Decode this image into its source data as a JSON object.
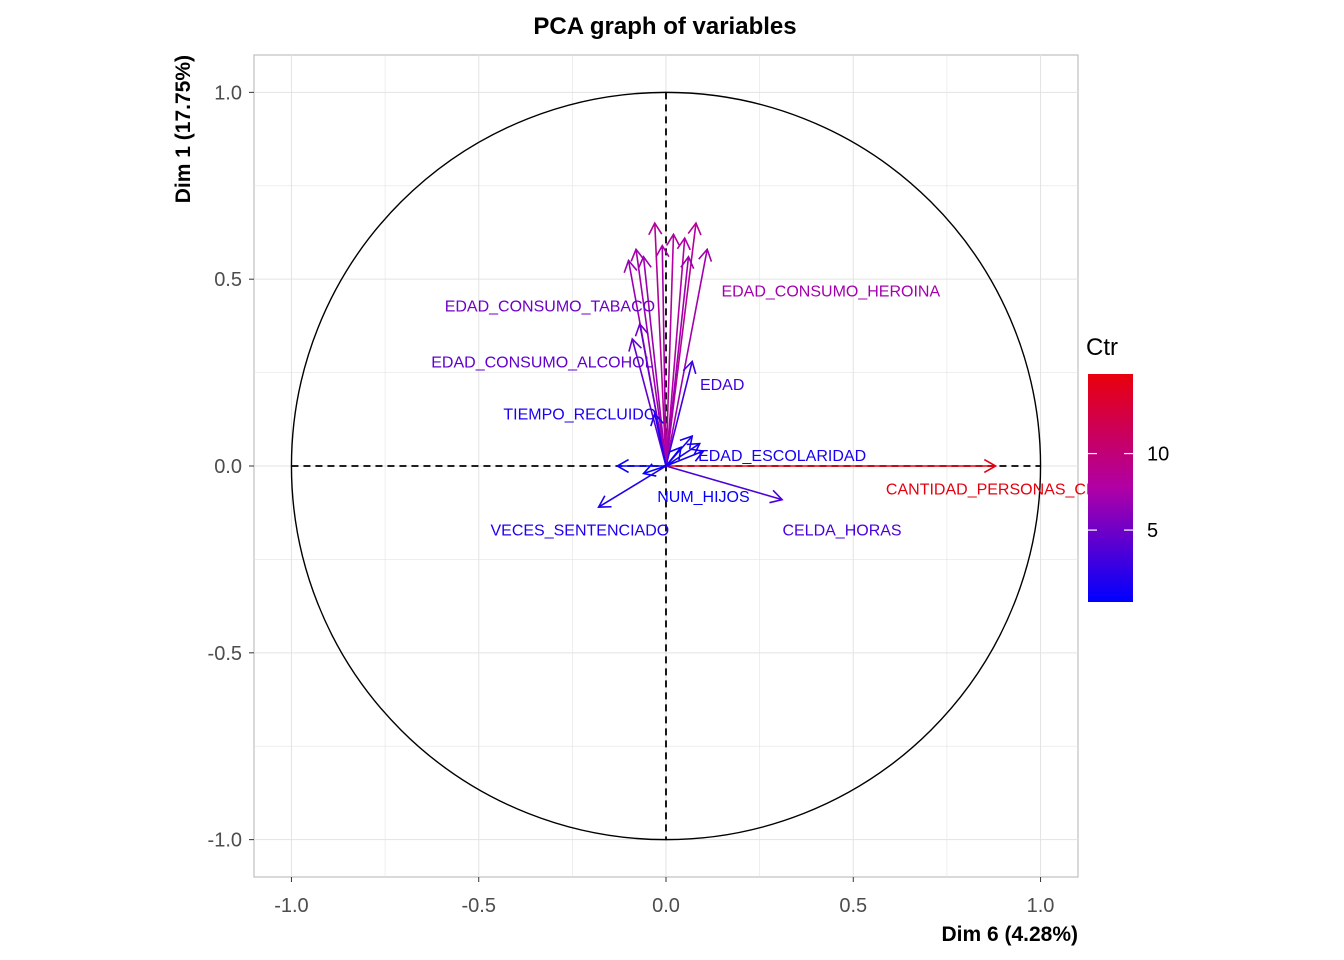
{
  "chart_data": {
    "type": "scatter",
    "subtype": "pca-correlation-circle",
    "title": "PCA graph of variables",
    "xlabel": "Dim 6 (4.28%)",
    "ylabel": "Dim 1 (17.75%)",
    "xlim": [
      -1.1,
      1.1
    ],
    "ylim": [
      -1.1,
      1.1
    ],
    "x_ticks": [
      -1.0,
      -0.5,
      0.0,
      0.5,
      1.0
    ],
    "y_ticks": [
      -1.0,
      -0.5,
      0.0,
      0.5,
      1.0
    ],
    "x_tick_labels": [
      "-1.0",
      "-0.5",
      "0.0",
      "0.5",
      "1.0"
    ],
    "y_tick_labels": [
      "-1.0",
      "-0.5",
      "0.0",
      "0.5",
      "1.0"
    ],
    "grid": true,
    "unit_circle": true,
    "legend": {
      "title": "Ctr",
      "placement": "right",
      "ticks": [
        5,
        10
      ],
      "tick_labels": [
        "5",
        "10"
      ],
      "range": [
        0.3,
        15.2
      ],
      "low_color": "#0000ff",
      "mid_color": "#b000a6",
      "high_color": "#e8000b"
    },
    "variables": [
      {
        "name": "CANTIDAD_PERSONAS_CELDA",
        "x": 0.88,
        "y": 0.0,
        "ctr": 15.0,
        "label": "CANTIDAD_PERSONAS_CELDA",
        "label_x": 0.91,
        "label_y": -0.06
      },
      {
        "name": "EDAD_CONSUMO_HEROINA",
        "x": 0.11,
        "y": 0.58,
        "ctr": 7.2,
        "label": "EDAD_CONSUMO_HEROINA",
        "label_x": 0.44,
        "label_y": 0.47
      },
      {
        "name": "",
        "x": 0.08,
        "y": 0.65,
        "ctr": 8.5,
        "label": ""
      },
      {
        "name": "",
        "x": 0.05,
        "y": 0.61,
        "ctr": 7.8,
        "label": ""
      },
      {
        "name": "",
        "x": 0.02,
        "y": 0.62,
        "ctr": 8.0,
        "label": ""
      },
      {
        "name": "",
        "x": 0.06,
        "y": 0.56,
        "ctr": 7.0,
        "label": ""
      },
      {
        "name": "",
        "x": -0.01,
        "y": 0.59,
        "ctr": 7.4,
        "label": ""
      },
      {
        "name": "",
        "x": -0.03,
        "y": 0.65,
        "ctr": 8.4,
        "label": ""
      },
      {
        "name": "",
        "x": -0.06,
        "y": 0.56,
        "ctr": 6.9,
        "label": ""
      },
      {
        "name": "",
        "x": -0.08,
        "y": 0.58,
        "ctr": 7.2,
        "label": ""
      },
      {
        "name": "",
        "x": -0.1,
        "y": 0.55,
        "ctr": 6.8,
        "label": ""
      },
      {
        "name": "EDAD_CONSUMO_TABACO",
        "x": -0.07,
        "y": 0.38,
        "ctr": 5.0,
        "label": "EDAD_CONSUMO_TABACO",
        "label_x": -0.31,
        "label_y": 0.43
      },
      {
        "name": "EDAD_CONSUMO_ALCOHOL",
        "x": -0.09,
        "y": 0.34,
        "ctr": 4.4,
        "label": "EDAD_CONSUMO_ALCOHOL",
        "label_x": -0.33,
        "label_y": 0.28
      },
      {
        "name": "EDAD",
        "x": 0.07,
        "y": 0.28,
        "ctr": 3.0,
        "label": "EDAD",
        "label_x": 0.15,
        "label_y": 0.22
      },
      {
        "name": "TIEMPO_RECLUIDO",
        "x": -0.03,
        "y": 0.14,
        "ctr": 1.5,
        "label": "TIEMPO_RECLUIDO",
        "label_x": -0.23,
        "label_y": 0.14
      },
      {
        "name": "EDAD_ESCOLARIDAD",
        "x": 0.09,
        "y": 0.06,
        "ctr": 1.3,
        "label": "EDAD_ESCOLARIDAD",
        "label_x": 0.31,
        "label_y": 0.03
      },
      {
        "name": "",
        "x": 0.07,
        "y": 0.08,
        "ctr": 1.2,
        "label": ""
      },
      {
        "name": "",
        "x": 0.1,
        "y": 0.04,
        "ctr": 1.1,
        "label": ""
      },
      {
        "name": "",
        "x": 0.04,
        "y": 0.05,
        "ctr": 0.8,
        "label": ""
      },
      {
        "name": "",
        "x": -0.13,
        "y": 0.0,
        "ctr": 0.7,
        "label": ""
      },
      {
        "name": "NUM_HIJOS",
        "x": -0.06,
        "y": -0.02,
        "ctr": 0.5,
        "label": "NUM_HIJOS",
        "label_x": 0.1,
        "label_y": -0.08
      },
      {
        "name": "VECES_SENTENCIADO",
        "x": -0.18,
        "y": -0.11,
        "ctr": 1.6,
        "label": "VECES_SENTENCIADO",
        "label_x": -0.23,
        "label_y": -0.17
      },
      {
        "name": "CELDA_HORAS",
        "x": 0.31,
        "y": -0.09,
        "ctr": 3.4,
        "label": "CELDA_HORAS",
        "label_x": 0.47,
        "label_y": -0.17
      }
    ]
  }
}
